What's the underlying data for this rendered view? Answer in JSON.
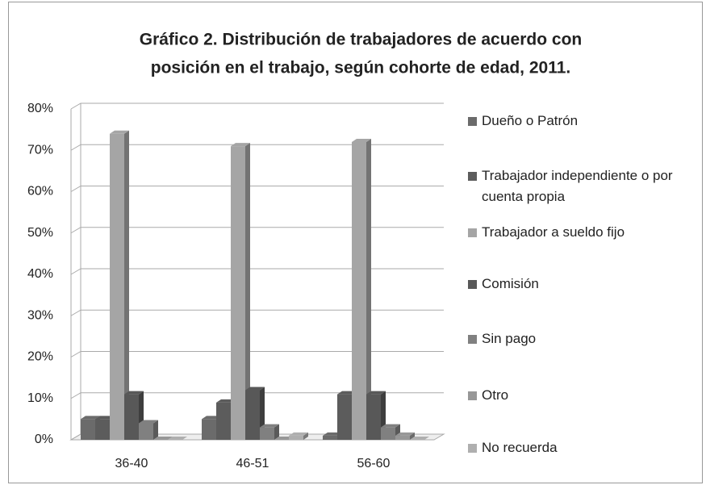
{
  "chart_data": {
    "type": "bar3d",
    "title": [
      "Gráfico 2.  Distribución de trabajadores de acuerdo con",
      "posición en el trabajo, según cohorte de edad, 2011."
    ],
    "categories": [
      "36-40",
      "46-51",
      "56-60"
    ],
    "series": [
      {
        "name": "Dueño o Patrón",
        "color": "#6b6b6b",
        "values": [
          5,
          5,
          1
        ]
      },
      {
        "name": "Trabajador independiente o por cuenta propia",
        "color": "#5c5c5c",
        "values": [
          5,
          9,
          11
        ]
      },
      {
        "name": "Trabajador a sueldo fijo",
        "color": "#a5a5a5",
        "values": [
          74,
          71,
          72
        ]
      },
      {
        "name": "Comisión",
        "color": "#585858",
        "values": [
          11,
          12,
          11
        ]
      },
      {
        "name": "Sin pago",
        "color": "#808080",
        "values": [
          4,
          3,
          3
        ]
      },
      {
        "name": "Otro",
        "color": "#979797",
        "values": [
          0,
          0,
          1
        ]
      },
      {
        "name": "No recuerda",
        "color": "#afafaf",
        "values": [
          0,
          1,
          0
        ]
      }
    ],
    "ylim": [
      0,
      80
    ],
    "yticks": [
      {
        "value": 0,
        "label": "0%"
      },
      {
        "value": 10,
        "label": "10%"
      },
      {
        "value": 20,
        "label": "20%"
      },
      {
        "value": 30,
        "label": "30%"
      },
      {
        "value": 40,
        "label": "40%"
      },
      {
        "value": 50,
        "label": "50%"
      },
      {
        "value": 60,
        "label": "60%"
      },
      {
        "value": 70,
        "label": "70%"
      },
      {
        "value": 80,
        "label": "80%"
      }
    ],
    "grid": true
  }
}
